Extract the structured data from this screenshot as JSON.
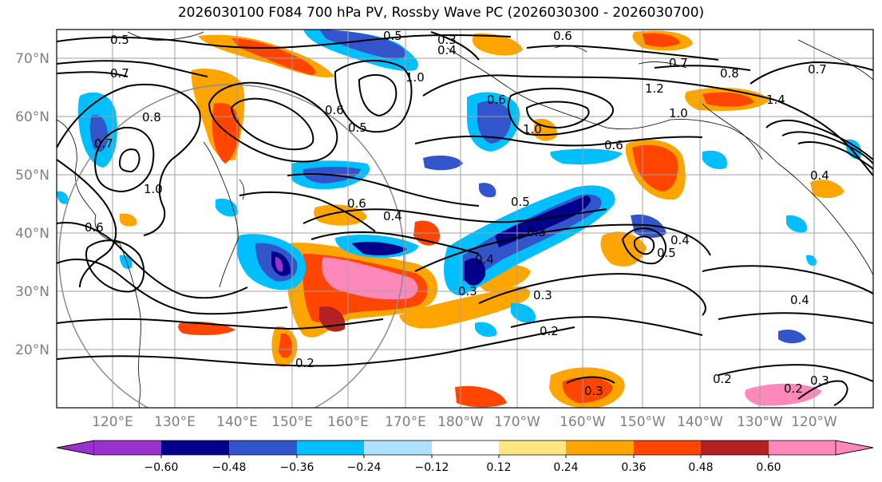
{
  "title": "2026030100 F084 700 hPa PV, Rossby Wave PC (2026030300 - 2026030700)",
  "axes": {
    "lat_labels": [
      "70°N",
      "60°N",
      "50°N",
      "40°N",
      "30°N",
      "20°N"
    ],
    "lon_labels": [
      "120°E",
      "130°E",
      "140°E",
      "150°E",
      "160°E",
      "170°E",
      "180°W",
      "170°W",
      "160°W",
      "150°W",
      "140°W",
      "130°W",
      "120°W"
    ]
  },
  "colorbar": {
    "ticks": [
      "−0.60",
      "−0.48",
      "−0.36",
      "−0.24",
      "−0.12",
      "0.12",
      "0.24",
      "0.36",
      "0.48",
      "0.60"
    ],
    "colors": [
      "#9932cc",
      "#00008b",
      "#3355cc",
      "#00bfff",
      "#b0e2ff",
      "#ffffff",
      "#ffe680",
      "#ffa500",
      "#ff4500",
      "#b22222",
      "#ff88bb"
    ]
  },
  "contour_labels": [
    {
      "text": "0.5"
    },
    {
      "text": "0.3"
    },
    {
      "text": "0.4"
    },
    {
      "text": "0.6"
    },
    {
      "text": "0.5"
    },
    {
      "text": "1.0"
    },
    {
      "text": "0.7"
    },
    {
      "text": "0.8"
    },
    {
      "text": "0.7"
    },
    {
      "text": "0.8"
    },
    {
      "text": "1.2"
    },
    {
      "text": "1.4"
    },
    {
      "text": "1.0"
    },
    {
      "text": "0.7"
    },
    {
      "text": "0.6"
    },
    {
      "text": "0.7"
    },
    {
      "text": "1.0"
    },
    {
      "text": "0.6"
    },
    {
      "text": "0.6"
    },
    {
      "text": "1.0"
    },
    {
      "text": "0.4"
    },
    {
      "text": "0.6"
    },
    {
      "text": "0.4"
    },
    {
      "text": "0.5"
    },
    {
      "text": "0.3"
    },
    {
      "text": "0.5"
    },
    {
      "text": "0.4"
    },
    {
      "text": "0.3"
    },
    {
      "text": "0.2"
    },
    {
      "text": "0.4"
    },
    {
      "text": "0.2"
    },
    {
      "text": "0.2"
    },
    {
      "text": "0.2"
    },
    {
      "text": "0.3"
    },
    {
      "text": "0.3"
    },
    {
      "text": "0.6"
    },
    {
      "text": "0.5"
    },
    {
      "text": "0.4"
    },
    {
      "text": "0.3"
    }
  ]
}
